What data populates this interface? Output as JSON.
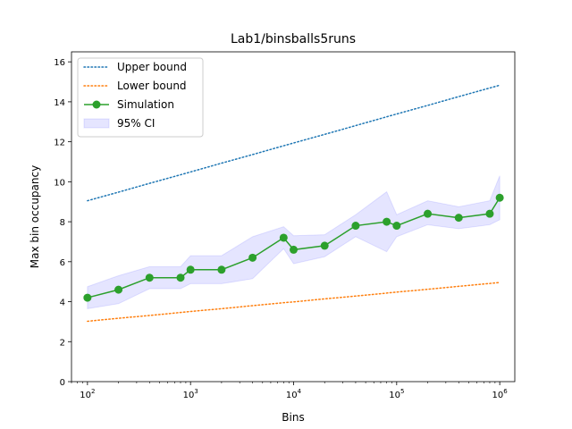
{
  "chart_data": {
    "type": "line",
    "title": "Lab1/binsballs5runs",
    "xlabel": "Bins",
    "ylabel": "Max bin occupancy",
    "xscale": "log",
    "xlim": [
      70,
      1400000
    ],
    "ylim": [
      0,
      16.5
    ],
    "xticks": [
      {
        "value": 100,
        "base": "10",
        "exp": "2"
      },
      {
        "value": 1000,
        "base": "10",
        "exp": "3"
      },
      {
        "value": 10000,
        "base": "10",
        "exp": "4"
      },
      {
        "value": 100000,
        "base": "10",
        "exp": "5"
      },
      {
        "value": 1000000,
        "base": "10",
        "exp": "6"
      }
    ],
    "yticks": [
      {
        "value": 0,
        "label": "0"
      },
      {
        "value": 2,
        "label": "2"
      },
      {
        "value": 4,
        "label": "4"
      },
      {
        "value": 6,
        "label": "6"
      },
      {
        "value": 8,
        "label": "8"
      },
      {
        "value": 10,
        "label": "10"
      },
      {
        "value": 12,
        "label": "12"
      },
      {
        "value": 14,
        "label": "14"
      },
      {
        "value": 16,
        "label": "16"
      }
    ],
    "grid": false,
    "legend_position": "top-left",
    "x": [
      100,
      200,
      400,
      800,
      1000,
      2000,
      4000,
      8000,
      10000,
      20000,
      40000,
      80000,
      100000,
      200000,
      400000,
      800000,
      1000000
    ],
    "series": [
      {
        "name": "Upper bound",
        "style": "dotted",
        "color": "#1f77b4",
        "values": [
          9.05,
          9.48,
          9.92,
          10.35,
          10.49,
          10.93,
          11.36,
          11.8,
          11.94,
          12.37,
          12.81,
          13.25,
          13.39,
          13.82,
          14.26,
          14.69,
          14.83
        ]
      },
      {
        "name": "Lower bound",
        "style": "dotted",
        "color": "#ff7f0e",
        "values": [
          3.02,
          3.17,
          3.31,
          3.46,
          3.51,
          3.65,
          3.8,
          3.95,
          3.99,
          4.14,
          4.28,
          4.43,
          4.48,
          4.62,
          4.77,
          4.91,
          4.96
        ]
      },
      {
        "name": "Simulation",
        "style": "solid-marker",
        "color": "#2ca02c",
        "values": [
          4.2,
          4.6,
          5.2,
          5.2,
          5.6,
          5.6,
          6.2,
          7.2,
          6.6,
          6.8,
          7.8,
          8.0,
          7.8,
          8.4,
          8.2,
          8.4,
          9.2
        ]
      }
    ],
    "ci": {
      "name": "95% CI",
      "color": "#0000ff",
      "lower": [
        3.65,
        3.9,
        4.65,
        4.65,
        4.9,
        4.9,
        5.15,
        6.65,
        5.9,
        6.25,
        7.25,
        6.5,
        7.25,
        7.85,
        7.65,
        7.85,
        8.1
      ],
      "upper": [
        4.75,
        5.3,
        5.75,
        5.75,
        6.3,
        6.3,
        7.25,
        7.75,
        7.3,
        7.35,
        8.35,
        9.5,
        8.35,
        9.05,
        8.75,
        9.05,
        10.3
      ]
    }
  }
}
